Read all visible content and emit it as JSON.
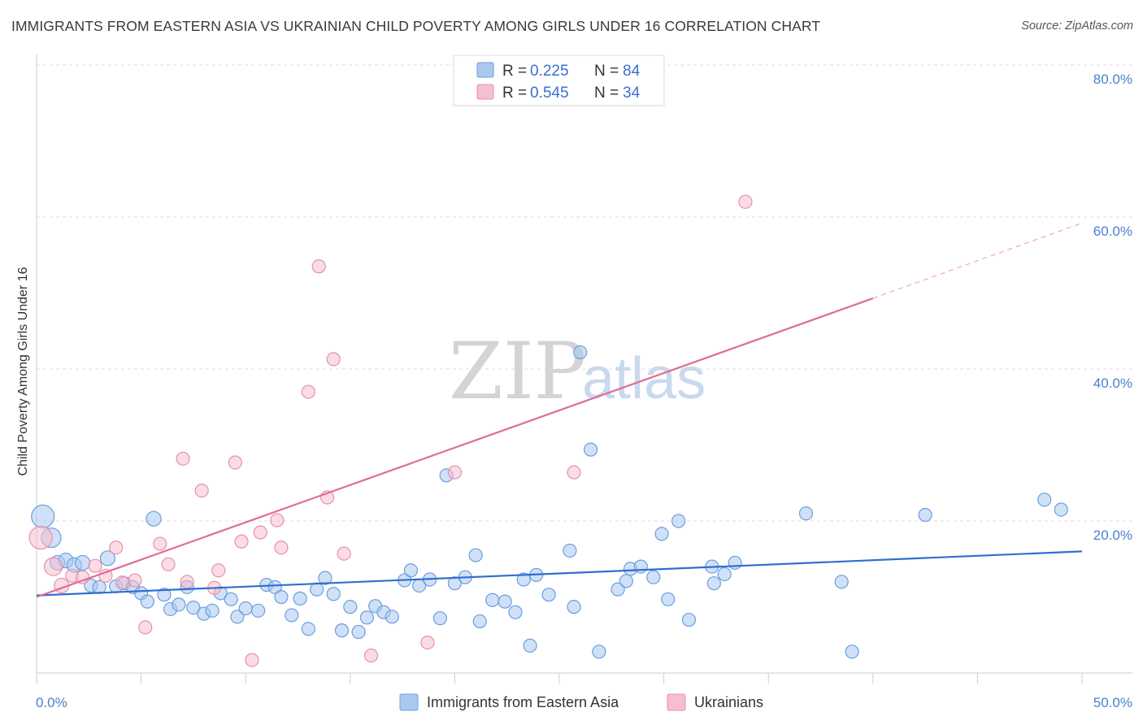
{
  "title": "IMMIGRANTS FROM EASTERN ASIA VS UKRAINIAN CHILD POVERTY AMONG GIRLS UNDER 16 CORRELATION CHART",
  "source": "Source: ZipAtlas.com",
  "watermark": {
    "zip": "ZIP",
    "atlas": "atlas"
  },
  "legend": {
    "rows": [
      {
        "r_label": "R =",
        "r_value": "0.225",
        "n_label": "N =",
        "n_value": "84"
      },
      {
        "r_label": "R =",
        "r_value": "0.545",
        "n_label": "N =",
        "n_value": "34"
      }
    ]
  },
  "bottom_legend": [
    "Immigrants from Eastern Asia",
    "Ukrainians"
  ],
  "colors": {
    "blue_fill": "#aac8f0",
    "blue_stroke": "#6a9ee0",
    "blue_line": "#2f6fce",
    "pink_fill": "#f6bfd0",
    "pink_stroke": "#e890ab",
    "pink_line": "#e06c96",
    "tick_text": "#4a7fd0"
  },
  "chart_data": {
    "type": "scatter",
    "title": "IMMIGRANTS FROM EASTERN ASIA VS UKRAINIAN CHILD POVERTY AMONG GIRLS UNDER 16 CORRELATION CHART",
    "xlabel": "",
    "ylabel": "Child Poverty Among Girls Under 16",
    "xlim": [
      0,
      50
    ],
    "ylim": [
      0,
      80
    ],
    "x_tick_labels": [
      "0.0%",
      "50.0%"
    ],
    "y_ticks": [
      20,
      40,
      60,
      80
    ],
    "y_tick_labels": [
      "20.0%",
      "40.0%",
      "60.0%",
      "80.0%"
    ],
    "grid": true,
    "legend_position": "top-center",
    "series": [
      {
        "name": "Immigrants from Eastern Asia",
        "color": "#aac8f0",
        "trend": {
          "x": [
            0,
            50
          ],
          "y": [
            10.2,
            16.0
          ]
        },
        "points": [
          {
            "x": 0.3,
            "y": 20.6,
            "s": 14
          },
          {
            "x": 0.7,
            "y": 17.8,
            "s": 12
          },
          {
            "x": 1.0,
            "y": 14.5,
            "s": 9
          },
          {
            "x": 1.4,
            "y": 14.8,
            "s": 9
          },
          {
            "x": 1.8,
            "y": 14.2,
            "s": 9
          },
          {
            "x": 2.2,
            "y": 14.5,
            "s": 9
          },
          {
            "x": 2.6,
            "y": 11.5,
            "s": 8
          },
          {
            "x": 3.0,
            "y": 11.3,
            "s": 8
          },
          {
            "x": 3.4,
            "y": 15.1,
            "s": 9
          },
          {
            "x": 3.8,
            "y": 11.4,
            "s": 8
          },
          {
            "x": 4.2,
            "y": 11.8,
            "s": 8
          },
          {
            "x": 4.6,
            "y": 11.3,
            "s": 8
          },
          {
            "x": 5.0,
            "y": 10.5,
            "s": 8
          },
          {
            "x": 5.3,
            "y": 9.4,
            "s": 8
          },
          {
            "x": 5.6,
            "y": 20.3,
            "s": 9
          },
          {
            "x": 6.1,
            "y": 10.3,
            "s": 8
          },
          {
            "x": 6.4,
            "y": 8.4,
            "s": 8
          },
          {
            "x": 6.8,
            "y": 9.0,
            "s": 8
          },
          {
            "x": 7.2,
            "y": 11.3,
            "s": 8
          },
          {
            "x": 7.5,
            "y": 8.6,
            "s": 8
          },
          {
            "x": 8.0,
            "y": 7.8,
            "s": 8
          },
          {
            "x": 8.4,
            "y": 8.2,
            "s": 8
          },
          {
            "x": 8.8,
            "y": 10.5,
            "s": 8
          },
          {
            "x": 9.3,
            "y": 9.7,
            "s": 8
          },
          {
            "x": 9.6,
            "y": 7.4,
            "s": 8
          },
          {
            "x": 10.0,
            "y": 8.5,
            "s": 8
          },
          {
            "x": 10.6,
            "y": 8.2,
            "s": 8
          },
          {
            "x": 11.0,
            "y": 11.6,
            "s": 8
          },
          {
            "x": 11.4,
            "y": 11.3,
            "s": 8
          },
          {
            "x": 11.7,
            "y": 10.0,
            "s": 8
          },
          {
            "x": 12.2,
            "y": 7.6,
            "s": 8
          },
          {
            "x": 12.6,
            "y": 9.8,
            "s": 8
          },
          {
            "x": 13.0,
            "y": 5.8,
            "s": 8
          },
          {
            "x": 13.4,
            "y": 11.0,
            "s": 8
          },
          {
            "x": 13.8,
            "y": 12.5,
            "s": 8
          },
          {
            "x": 14.2,
            "y": 10.4,
            "s": 8
          },
          {
            "x": 14.6,
            "y": 5.6,
            "s": 8
          },
          {
            "x": 15.0,
            "y": 8.7,
            "s": 8
          },
          {
            "x": 15.4,
            "y": 5.4,
            "s": 8
          },
          {
            "x": 15.8,
            "y": 7.3,
            "s": 8
          },
          {
            "x": 16.2,
            "y": 8.8,
            "s": 8
          },
          {
            "x": 16.6,
            "y": 8.0,
            "s": 8
          },
          {
            "x": 17.0,
            "y": 7.4,
            "s": 8
          },
          {
            "x": 17.6,
            "y": 12.2,
            "s": 8
          },
          {
            "x": 17.9,
            "y": 13.5,
            "s": 8
          },
          {
            "x": 18.3,
            "y": 11.5,
            "s": 8
          },
          {
            "x": 18.8,
            "y": 12.3,
            "s": 8
          },
          {
            "x": 19.3,
            "y": 7.2,
            "s": 8
          },
          {
            "x": 19.6,
            "y": 26.0,
            "s": 8
          },
          {
            "x": 20.0,
            "y": 11.8,
            "s": 8
          },
          {
            "x": 20.5,
            "y": 12.6,
            "s": 8
          },
          {
            "x": 21.0,
            "y": 15.5,
            "s": 8
          },
          {
            "x": 21.2,
            "y": 6.8,
            "s": 8
          },
          {
            "x": 21.8,
            "y": 9.6,
            "s": 8
          },
          {
            "x": 22.4,
            "y": 9.4,
            "s": 8
          },
          {
            "x": 22.9,
            "y": 8.0,
            "s": 8
          },
          {
            "x": 23.3,
            "y": 12.3,
            "s": 8
          },
          {
            "x": 23.6,
            "y": 3.6,
            "s": 8
          },
          {
            "x": 23.9,
            "y": 12.9,
            "s": 8
          },
          {
            "x": 24.5,
            "y": 10.3,
            "s": 8
          },
          {
            "x": 25.5,
            "y": 16.1,
            "s": 8
          },
          {
            "x": 25.7,
            "y": 8.7,
            "s": 8
          },
          {
            "x": 26.0,
            "y": 42.2,
            "s": 8
          },
          {
            "x": 26.5,
            "y": 29.4,
            "s": 8
          },
          {
            "x": 26.9,
            "y": 2.8,
            "s": 8
          },
          {
            "x": 27.8,
            "y": 11.0,
            "s": 8
          },
          {
            "x": 28.2,
            "y": 12.1,
            "s": 8
          },
          {
            "x": 28.4,
            "y": 13.7,
            "s": 8
          },
          {
            "x": 28.9,
            "y": 14.0,
            "s": 8
          },
          {
            "x": 29.5,
            "y": 12.6,
            "s": 8
          },
          {
            "x": 29.9,
            "y": 18.3,
            "s": 8
          },
          {
            "x": 30.2,
            "y": 9.7,
            "s": 8
          },
          {
            "x": 30.7,
            "y": 20.0,
            "s": 8
          },
          {
            "x": 31.2,
            "y": 7.0,
            "s": 8
          },
          {
            "x": 32.3,
            "y": 14.0,
            "s": 8
          },
          {
            "x": 32.4,
            "y": 11.8,
            "s": 8
          },
          {
            "x": 32.9,
            "y": 13.0,
            "s": 8
          },
          {
            "x": 33.4,
            "y": 14.5,
            "s": 8
          },
          {
            "x": 36.8,
            "y": 21.0,
            "s": 8
          },
          {
            "x": 38.5,
            "y": 12.0,
            "s": 8
          },
          {
            "x": 39.0,
            "y": 2.8,
            "s": 8
          },
          {
            "x": 42.5,
            "y": 20.8,
            "s": 8
          },
          {
            "x": 48.2,
            "y": 22.8,
            "s": 8
          },
          {
            "x": 49.0,
            "y": 21.5,
            "s": 8
          }
        ]
      },
      {
        "name": "Ukrainians",
        "color": "#f6bfd0",
        "trend": {
          "x": [
            0,
            40,
            50
          ],
          "y": [
            10.0,
            49.3,
            59.2
          ],
          "solid_until": 40
        },
        "points": [
          {
            "x": 0.2,
            "y": 17.8,
            "s": 14
          },
          {
            "x": 0.8,
            "y": 14.0,
            "s": 11
          },
          {
            "x": 1.2,
            "y": 11.5,
            "s": 9
          },
          {
            "x": 1.7,
            "y": 12.8,
            "s": 8
          },
          {
            "x": 2.2,
            "y": 12.6,
            "s": 8
          },
          {
            "x": 2.8,
            "y": 14.1,
            "s": 8
          },
          {
            "x": 3.3,
            "y": 12.8,
            "s": 8
          },
          {
            "x": 3.8,
            "y": 16.5,
            "s": 8
          },
          {
            "x": 4.1,
            "y": 11.9,
            "s": 8
          },
          {
            "x": 4.7,
            "y": 12.2,
            "s": 8
          },
          {
            "x": 5.2,
            "y": 6.0,
            "s": 8
          },
          {
            "x": 5.9,
            "y": 17.0,
            "s": 8
          },
          {
            "x": 6.3,
            "y": 14.3,
            "s": 8
          },
          {
            "x": 7.0,
            "y": 28.2,
            "s": 8
          },
          {
            "x": 7.2,
            "y": 12.0,
            "s": 8
          },
          {
            "x": 7.9,
            "y": 24.0,
            "s": 8
          },
          {
            "x": 8.5,
            "y": 11.2,
            "s": 8
          },
          {
            "x": 8.7,
            "y": 13.5,
            "s": 8
          },
          {
            "x": 9.5,
            "y": 27.7,
            "s": 8
          },
          {
            "x": 9.8,
            "y": 17.3,
            "s": 8
          },
          {
            "x": 10.3,
            "y": 1.7,
            "s": 8
          },
          {
            "x": 10.7,
            "y": 18.5,
            "s": 8
          },
          {
            "x": 11.5,
            "y": 20.1,
            "s": 8
          },
          {
            "x": 11.7,
            "y": 16.5,
            "s": 8
          },
          {
            "x": 13.0,
            "y": 37.0,
            "s": 8
          },
          {
            "x": 13.5,
            "y": 53.5,
            "s": 8
          },
          {
            "x": 13.9,
            "y": 23.1,
            "s": 8
          },
          {
            "x": 14.2,
            "y": 41.3,
            "s": 8
          },
          {
            "x": 14.7,
            "y": 15.7,
            "s": 8
          },
          {
            "x": 16.0,
            "y": 2.3,
            "s": 8
          },
          {
            "x": 18.7,
            "y": 4.0,
            "s": 8
          },
          {
            "x": 20.0,
            "y": 26.4,
            "s": 8
          },
          {
            "x": 25.7,
            "y": 26.4,
            "s": 8
          },
          {
            "x": 33.9,
            "y": 62.0,
            "s": 8
          }
        ]
      }
    ]
  }
}
